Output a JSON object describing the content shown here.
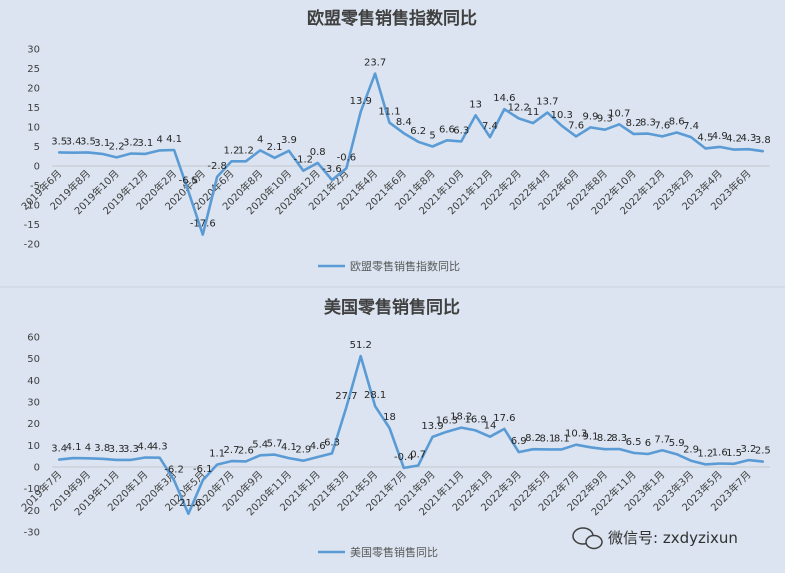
{
  "colors": {
    "line": "#5b9bd5",
    "background": "#dbe4f0",
    "text": "#404040"
  },
  "watermark": {
    "icon": "wechat-icon",
    "text": "微信号: zxdyzixun"
  },
  "chart_data": [
    {
      "type": "line",
      "title": "欧盟零售销售指数同比",
      "legend": "欧盟零售销售指数同比",
      "legend_position": "bottom",
      "grid": false,
      "ylim": [
        -20,
        30
      ],
      "yticks": [
        "30",
        "25",
        "20",
        "15",
        "10",
        "5",
        "0",
        "-5",
        "-10",
        "-15",
        "-20"
      ],
      "xtick_labels": [
        "2019年6月",
        "2019年8月",
        "2019年10月",
        "2019年12月",
        "2020年2月",
        "2020年4月",
        "2020年6月",
        "2020年8月",
        "2020年10月",
        "2020年12月",
        "2021年2月",
        "2021年4月",
        "2021年6月",
        "2021年8月",
        "2021年10月",
        "2021年12月",
        "2022年2月",
        "2022年4月",
        "2022年6月",
        "2022年8月",
        "2022年10月",
        "2022年12月",
        "2023年2月",
        "2023年4月",
        "2023年6月"
      ],
      "series": [
        {
          "name": "欧盟零售销售指数同比",
          "values": [
            3.5,
            3.4,
            3.5,
            3.1,
            2.2,
            3.2,
            3.1,
            4,
            4.1,
            -6.5,
            -17.6,
            -2.8,
            1.2,
            1.2,
            4,
            2.1,
            3.9,
            -1.2,
            0.8,
            -3.6,
            -0.6,
            13.9,
            23.7,
            11.1,
            8.4,
            6.2,
            5,
            6.6,
            6.3,
            13,
            7.4,
            14.6,
            12.2,
            11,
            13.7,
            10.3,
            7.6,
            9.9,
            9.3,
            10.7,
            8.2,
            8.3,
            7.6,
            8.6,
            7.4,
            4.5,
            4.9,
            4.2,
            4.3,
            3.8
          ],
          "labels": [
            "3.5",
            "3.4",
            "3.5",
            "3.1",
            "2.2",
            "3.2",
            "3.1",
            "4",
            "4.1",
            "-6.5",
            "-17.6",
            "-2.8",
            "1.2",
            "1.2",
            "4",
            "2.1",
            "3.9",
            "-1.2",
            "0.8",
            "-3.6",
            "-0.6",
            "13.9",
            "23.7",
            "11.1",
            "8.4",
            "6.2",
            "5",
            "6.6",
            "6.3",
            "13",
            "7.4",
            "14.6",
            "12.2",
            "11",
            "13.7",
            "10.3",
            "7.6",
            "9.9",
            "9.3",
            "10.7",
            "8.2",
            "8.3",
            "7.6",
            "8.6",
            "7.4",
            "4.5",
            "4.9",
            "4.2",
            "4.3",
            "3.8"
          ]
        }
      ]
    },
    {
      "type": "line",
      "title": "美国零售销售同比",
      "legend": "美国零售销售同比",
      "legend_position": "bottom",
      "grid": false,
      "ylim": [
        -30,
        60
      ],
      "yticks": [
        "60",
        "50",
        "40",
        "30",
        "20",
        "10",
        "0",
        "-10",
        "-20",
        "-30"
      ],
      "xtick_labels": [
        "2019年7月",
        "2019年9月",
        "2019年11月",
        "2020年1月",
        "2020年3月",
        "2020年5月",
        "2020年7月",
        "2020年9月",
        "2020年11月",
        "2021年1月",
        "2021年3月",
        "2021年5月",
        "2021年7月",
        "2021年9月",
        "2021年11月",
        "2022年1月",
        "2022年3月",
        "2022年5月",
        "2022年7月",
        "2022年9月",
        "2022年11月",
        "2023年1月",
        "2023年3月",
        "2023年5月",
        "2023年7月"
      ],
      "series": [
        {
          "name": "美国零售销售同比",
          "values": [
            3.4,
            4.1,
            4,
            3.8,
            3.3,
            3.3,
            4.4,
            4.3,
            -6.2,
            -21.6,
            -6.1,
            1.1,
            2.7,
            2.6,
            5.4,
            5.7,
            4.1,
            2.9,
            4.6,
            6.3,
            27.7,
            51.2,
            28.1,
            18,
            -0.4,
            0.7,
            13.9,
            16.3,
            18.2,
            16.9,
            14,
            17.6,
            6.9,
            8.2,
            8.1,
            8.1,
            10.3,
            9.1,
            8.2,
            8.3,
            6.5,
            6,
            7.7,
            5.9,
            2.9,
            1.2,
            1.6,
            1.5,
            3.2,
            2.5
          ],
          "labels": [
            "3.4",
            "4.1",
            "4",
            "3.8",
            "3.3",
            "3.3",
            "4.4",
            "4.3",
            "-6.2",
            "-21.6",
            "-6.1",
            "1.1",
            "2.7",
            "2.6",
            "5.4",
            "5.7",
            "4.1",
            "2.9",
            "4.6",
            "6.3",
            "27.7",
            "51.2",
            "28.1",
            "18",
            "-0.4",
            "0.7",
            "13.9",
            "16.3",
            "18.2",
            "16.9",
            "14",
            "17.6",
            "6.9",
            "8.2",
            "8.1",
            "8.1",
            "10.3",
            "9.1",
            "8.2",
            "8.3",
            "6.5",
            "6",
            "7.7",
            "5.9",
            "2.9",
            "1.2",
            "1.6",
            "1.5",
            "3.2",
            "2.5"
          ]
        }
      ]
    }
  ]
}
